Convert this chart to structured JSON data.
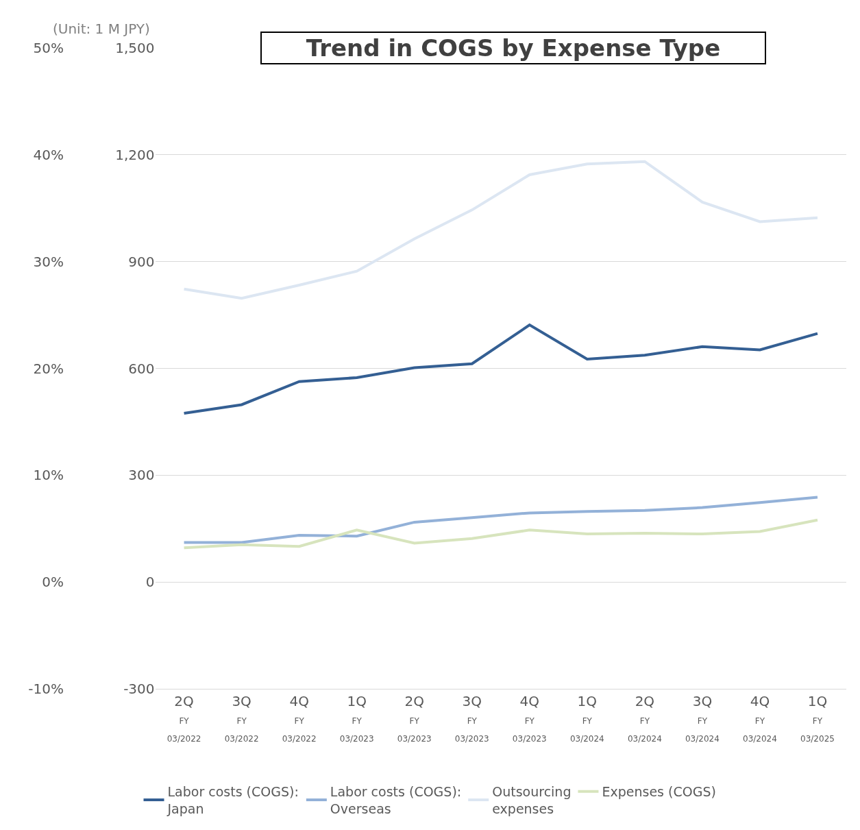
{
  "chart_data": {
    "type": "line",
    "title": "Trend in COGS by Expense Type",
    "categories": [
      "2Q\nFY\n03/2022",
      "3Q\nFY\n03/2022",
      "4Q\nFY\n03/2022",
      "1Q\nFY\n03/2023",
      "2Q\nFY\n03/2023",
      "3Q\nFY\n03/2023",
      "4Q\nFY\n03/2023",
      "1Q\nFY\n03/2024",
      "2Q\nFY\n03/2024",
      "3Q\nFY\n03/2024",
      "4Q\nFY\n03/2024",
      "1Q\nFY\n03/2025"
    ],
    "series": [
      {
        "name": "Labor costs (COGS):\nJapan",
        "color": "#345f93",
        "values": [
          474,
          498,
          563,
          574,
          602,
          613,
          722,
          626,
          637,
          661,
          652,
          698
        ]
      },
      {
        "name": "Labor costs (COGS):\nOverseas",
        "color": "#93b1d8",
        "values": [
          111,
          111,
          131,
          129,
          168,
          181,
          194,
          198,
          201,
          209,
          223,
          238
        ]
      },
      {
        "name": "Outsourcing\nexpenses",
        "color": "#dce6f2",
        "values": [
          823,
          797,
          834,
          873,
          964,
          1045,
          1144,
          1174,
          1181,
          1067,
          1012,
          1023
        ]
      },
      {
        "name": "Expenses (COGS)",
        "color": "#d7e4bd",
        "values": [
          96,
          105,
          100,
          146,
          109,
          122,
          146,
          135,
          137,
          135,
          142,
          174
        ]
      }
    ],
    "ylim": [
      -300,
      1500
    ],
    "yticks": [
      {
        "value": -300,
        "label": "-300"
      },
      0,
      300,
      600,
      900,
      {
        "value": 1200,
        "label": "1,200"
      },
      {
        "value": 1500,
        "label": "1,500"
      }
    ],
    "y2lim": [
      -10,
      50
    ],
    "y2ticks": [
      {
        "value": -10,
        "label": "-10%"
      },
      {
        "value": 0,
        "label": "0%"
      },
      {
        "value": 10,
        "label": "10%"
      },
      {
        "value": 20,
        "label": "20%"
      },
      {
        "value": 30,
        "label": "30%"
      },
      {
        "value": 40,
        "label": "40%"
      },
      {
        "value": 50,
        "label": "50%"
      }
    ],
    "annotations": [
      "(Unit: 1 M JPY)"
    ],
    "grid": "y",
    "legend": "bottom",
    "marker": "none",
    "line_style": "solid"
  }
}
